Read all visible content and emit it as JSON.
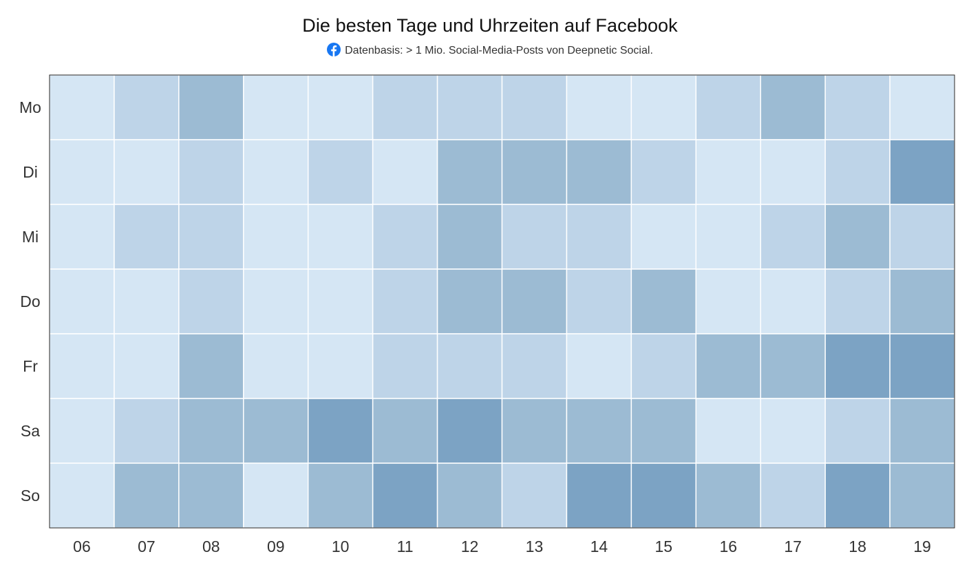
{
  "chart_data": {
    "type": "heatmap",
    "title": "Die besten Tage und Uhrzeiten auf Facebook",
    "subtitle": "Datenbasis: > 1 Mio. Social-Media-Posts von Deepnetic Social.",
    "subtitle_icon": "facebook-icon",
    "x_categories": [
      "06",
      "07",
      "08",
      "09",
      "10",
      "11",
      "12",
      "13",
      "14",
      "15",
      "16",
      "17",
      "18",
      "19"
    ],
    "y_categories": [
      "Mo",
      "Di",
      "Mi",
      "Do",
      "Fr",
      "Sa",
      "So"
    ],
    "values": [
      [
        1,
        2,
        3,
        1,
        1,
        2,
        2,
        2,
        1,
        1,
        2,
        3,
        2,
        1
      ],
      [
        1,
        1,
        2,
        1,
        2,
        1,
        3,
        3,
        3,
        2,
        1,
        1,
        2,
        4
      ],
      [
        1,
        2,
        2,
        1,
        1,
        2,
        3,
        2,
        2,
        1,
        1,
        2,
        3,
        2
      ],
      [
        1,
        1,
        2,
        1,
        1,
        2,
        3,
        3,
        2,
        3,
        1,
        1,
        2,
        3
      ],
      [
        1,
        1,
        3,
        1,
        1,
        2,
        2,
        2,
        1,
        2,
        3,
        3,
        4,
        4
      ],
      [
        1,
        2,
        3,
        3,
        4,
        3,
        4,
        3,
        3,
        3,
        1,
        1,
        2,
        3
      ],
      [
        1,
        3,
        3,
        1,
        3,
        4,
        3,
        2,
        4,
        4,
        3,
        2,
        4,
        3
      ]
    ],
    "color_scale": {
      "1": "#d5e6f4",
      "2": "#bed4e8",
      "3": "#9cbbd3",
      "4": "#7ca3c4"
    },
    "legend": "none",
    "grid": false
  }
}
